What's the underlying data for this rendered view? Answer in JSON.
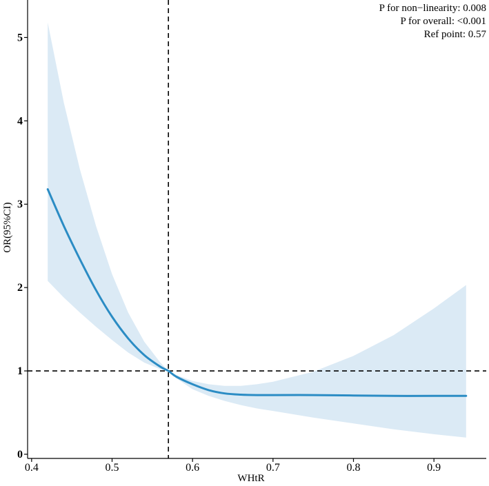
{
  "chart_data": {
    "type": "line",
    "title": "",
    "xlabel": "WHtR",
    "ylabel": "OR(95%CI)",
    "xlim": [
      0.395,
      0.965
    ],
    "ylim": [
      -0.05,
      5.45
    ],
    "xticks": [
      0.4,
      0.5,
      0.6,
      0.7,
      0.8,
      0.9
    ],
    "xtick_labels": [
      "0.4",
      "0.5",
      "0.6",
      "0.7",
      "0.8",
      "0.9"
    ],
    "yticks": [
      0,
      1,
      2,
      3,
      4,
      5
    ],
    "ytick_labels": [
      "0",
      "1",
      "2",
      "3",
      "4",
      "5"
    ],
    "grid": false,
    "colors": {
      "line": "#2b8cc4",
      "band": "#dbeaf5",
      "reference": "#000000"
    },
    "reference_lines": {
      "x": 0.57,
      "y": 1
    },
    "annotations": [
      "P for non−linearity:  0.008",
      "P for overall:  <0.001",
      "Ref point:  0.57"
    ],
    "series": [
      {
        "x": [
          0.42,
          0.44,
          0.46,
          0.48,
          0.5,
          0.52,
          0.54,
          0.56,
          0.57,
          0.58,
          0.6,
          0.62,
          0.64,
          0.66,
          0.68,
          0.7,
          0.75,
          0.8,
          0.85,
          0.9,
          0.94
        ],
        "y": [
          3.18,
          2.74,
          2.34,
          1.97,
          1.65,
          1.39,
          1.19,
          1.05,
          1.0,
          0.93,
          0.84,
          0.77,
          0.73,
          0.715,
          0.71,
          0.71,
          0.71,
          0.705,
          0.7,
          0.7,
          0.7
        ],
        "lower": [
          2.08,
          1.88,
          1.7,
          1.53,
          1.37,
          1.22,
          1.1,
          1.02,
          1.0,
          0.91,
          0.78,
          0.7,
          0.64,
          0.59,
          0.55,
          0.52,
          0.44,
          0.37,
          0.3,
          0.24,
          0.2
        ],
        "upper": [
          5.18,
          4.22,
          3.42,
          2.74,
          2.16,
          1.7,
          1.35,
          1.1,
          1.0,
          0.95,
          0.88,
          0.84,
          0.82,
          0.82,
          0.84,
          0.87,
          0.99,
          1.18,
          1.43,
          1.75,
          2.03
        ]
      }
    ]
  }
}
